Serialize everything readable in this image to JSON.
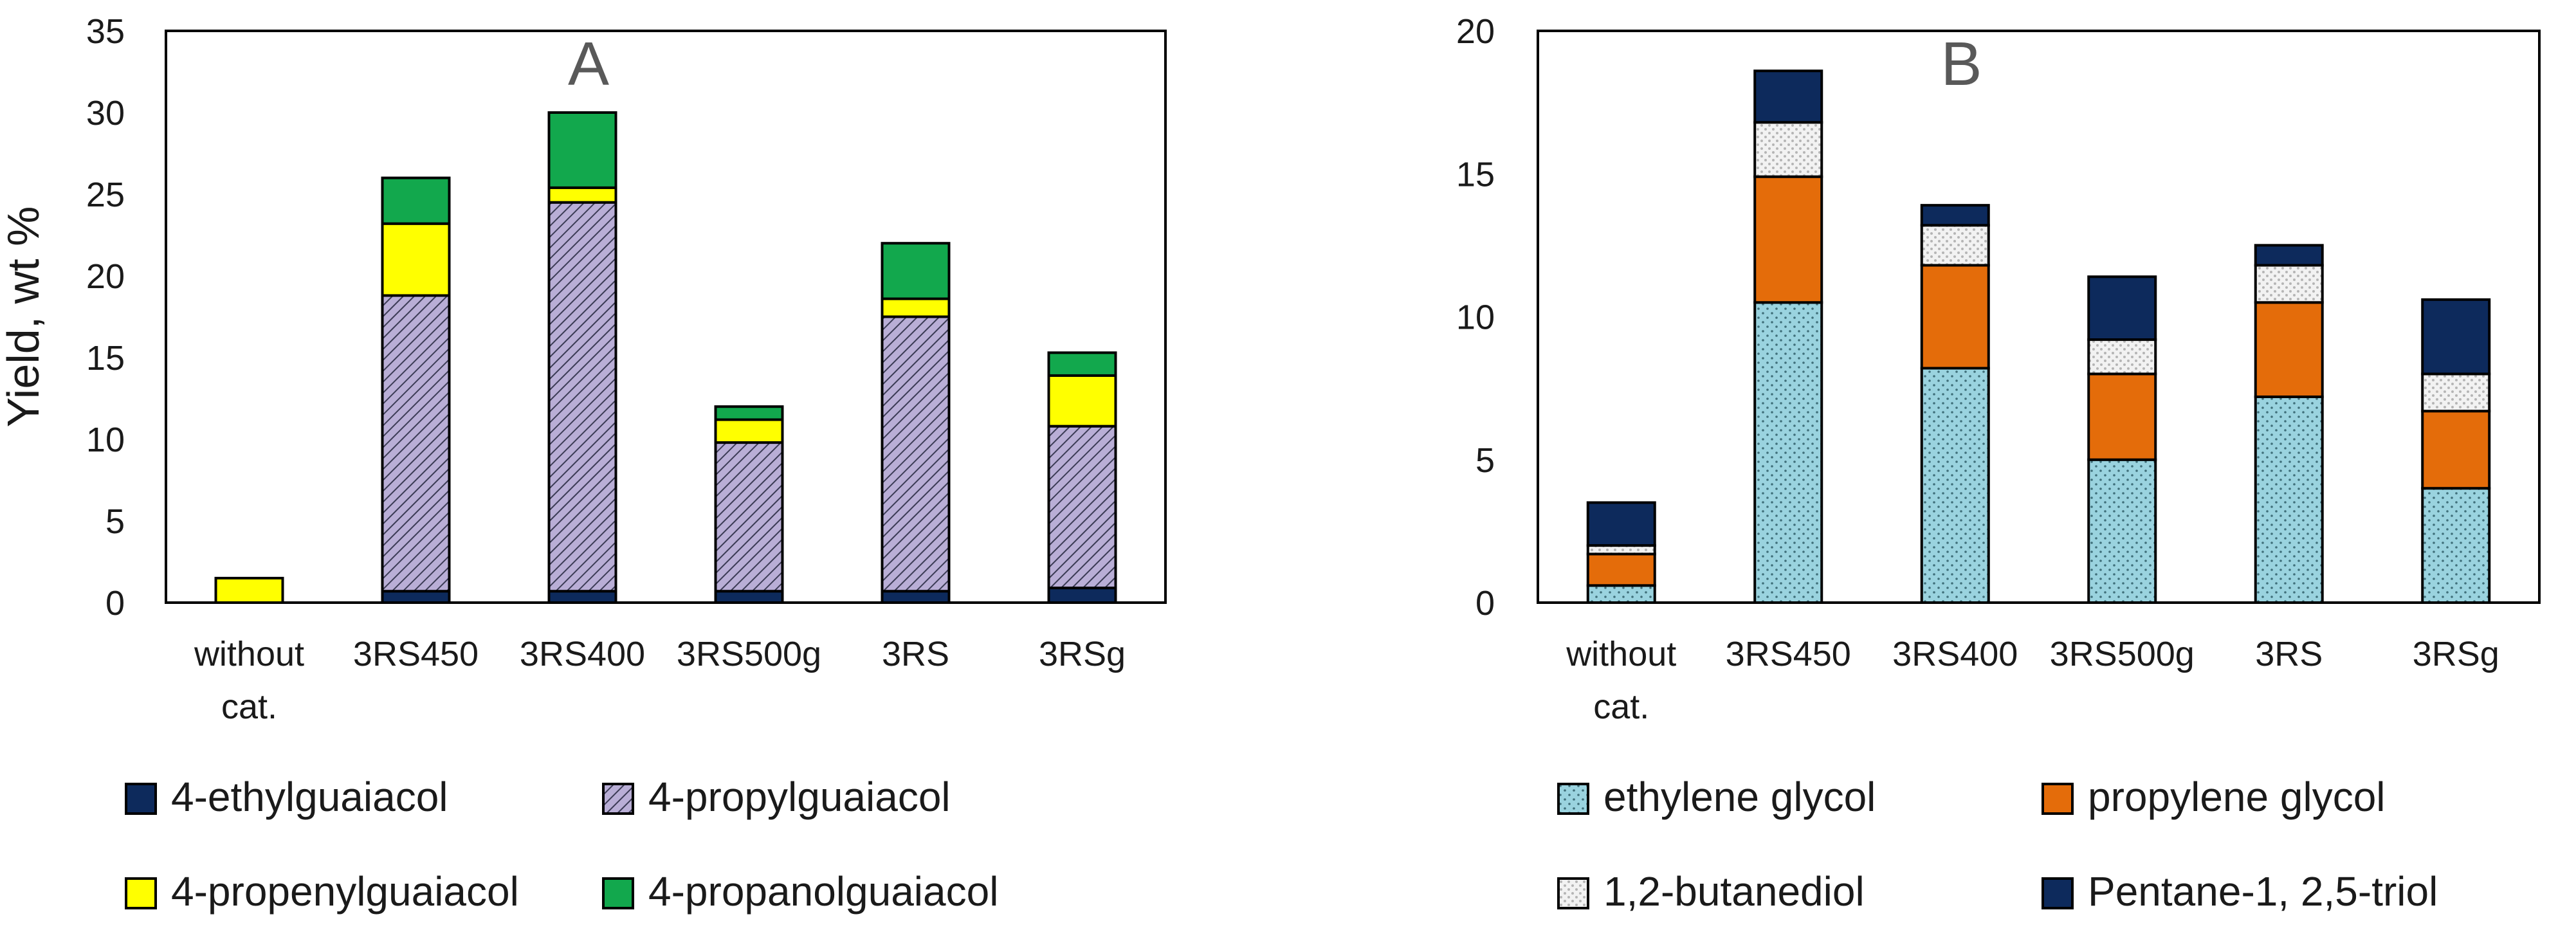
{
  "chart_data": [
    {
      "type": "bar",
      "stacked": true,
      "panel_label": "A",
      "ylabel": "Yield, wt %",
      "xlabel": "",
      "ylim": [
        0,
        35
      ],
      "yticks": [
        0,
        5,
        10,
        15,
        20,
        25,
        30,
        35
      ],
      "categories": [
        [
          "without",
          "cat."
        ],
        [
          "3RS450"
        ],
        [
          "3RS400"
        ],
        [
          "3RS500g"
        ],
        [
          "3RS"
        ],
        [
          "3RSg"
        ]
      ],
      "legend_position": "bottom",
      "series": [
        {
          "name": "4-ethylguaiacol",
          "key": "ethylguaiacol",
          "pattern": "solid-navy",
          "values": [
            0,
            0.7,
            0.7,
            0.7,
            0.7,
            0.9
          ]
        },
        {
          "name": "4-propylguaiacol",
          "key": "propylguaiacol",
          "pattern": "hatch-lavender",
          "values": [
            0,
            18.1,
            23.8,
            9.1,
            16.8,
            9.9
          ]
        },
        {
          "name": "4-propenylguaiacol",
          "key": "propenylguaiacol",
          "pattern": "solid-yellow",
          "values": [
            1.5,
            4.4,
            0.9,
            1.4,
            1.1,
            3.1
          ]
        },
        {
          "name": "4-propanolguaiacol",
          "key": "propanolguaiacol",
          "pattern": "solid-green",
          "values": [
            0,
            2.8,
            4.6,
            0.8,
            3.4,
            1.4
          ]
        }
      ]
    },
    {
      "type": "bar",
      "stacked": true,
      "panel_label": "B",
      "ylabel": "",
      "xlabel": "",
      "ylim": [
        0,
        20
      ],
      "yticks": [
        0,
        5,
        10,
        15,
        20
      ],
      "categories": [
        [
          "without",
          "cat."
        ],
        [
          "3RS450"
        ],
        [
          "3RS400"
        ],
        [
          "3RS500g"
        ],
        [
          "3RS"
        ],
        [
          "3RSg"
        ]
      ],
      "legend_position": "bottom",
      "series": [
        {
          "name": "ethylene glycol",
          "key": "ethylene-glycol",
          "pattern": "dots-lightblue",
          "values": [
            0.6,
            10.5,
            8.2,
            5.0,
            7.2,
            4.0
          ]
        },
        {
          "name": "propylene glycol",
          "key": "propylene-glycol",
          "pattern": "solid-orange",
          "values": [
            1.1,
            4.4,
            3.6,
            3.0,
            3.3,
            2.7
          ]
        },
        {
          "name": "1,2-butanediol",
          "key": "butanediol",
          "pattern": "dots-lightgray",
          "values": [
            0.3,
            1.9,
            1.4,
            1.2,
            1.3,
            1.3
          ]
        },
        {
          "name": "Pentane-1, 2,5-triol",
          "key": "pentanetriol",
          "pattern": "solid-navy",
          "values": [
            1.5,
            1.8,
            0.7,
            2.2,
            0.7,
            2.6
          ]
        }
      ]
    }
  ]
}
